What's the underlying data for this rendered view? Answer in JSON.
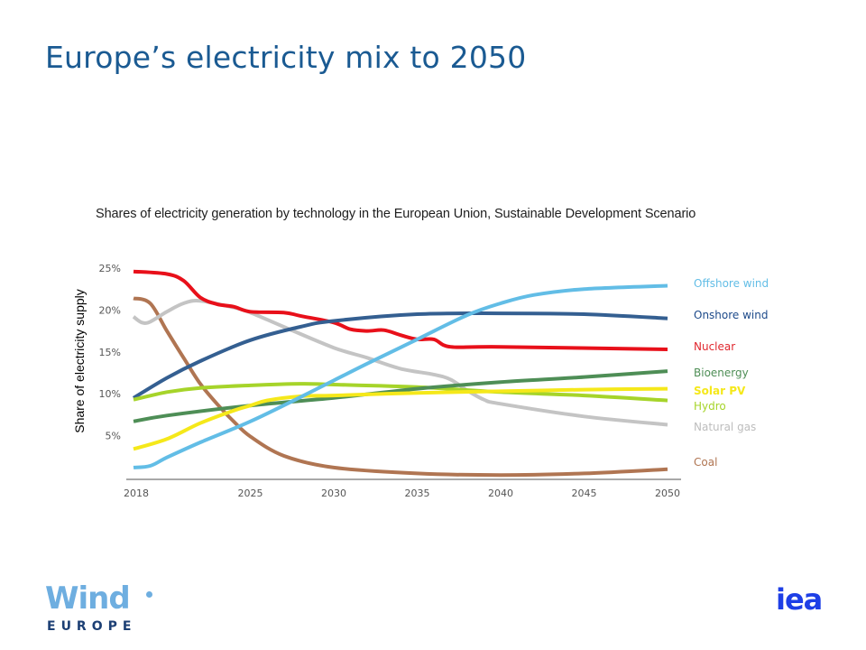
{
  "slide": {
    "title": "Europe’s electricity mix to 2050"
  },
  "logos": {
    "left_main": "Wind",
    "left_sub": "EUROPE",
    "right": "iea"
  },
  "chart_data": {
    "type": "line",
    "title": "Shares of electricity generation by technology in the European Union, Sustainable Development Scenario",
    "xlabel": "",
    "ylabel": "Share of electricity supply",
    "xlim": [
      2018,
      2050
    ],
    "ylim": [
      0,
      25
    ],
    "x_ticks": [
      2018,
      2025,
      2030,
      2035,
      2040,
      2045,
      2050
    ],
    "x_tick_labels": [
      "2018",
      "2025",
      "2030",
      "2035",
      "2040",
      "2045",
      "2050"
    ],
    "y_ticks": [
      5,
      10,
      15,
      20,
      25
    ],
    "y_tick_labels": [
      "5%",
      "10%",
      "15%",
      "20%",
      "25%"
    ],
    "grid": false,
    "legend_placement": "right (inline labels at line ends)",
    "series": [
      {
        "name": "Offshore wind",
        "color": "#62bde6",
        "points": [
          [
            2018,
            1.2
          ],
          [
            2019,
            1.4
          ],
          [
            2020,
            2.4
          ],
          [
            2022,
            4.2
          ],
          [
            2025,
            6.7
          ],
          [
            2028,
            9.6
          ],
          [
            2030,
            11.6
          ],
          [
            2032,
            13.6
          ],
          [
            2035,
            16.5
          ],
          [
            2038,
            19.4
          ],
          [
            2040,
            20.8
          ],
          [
            2042,
            21.8
          ],
          [
            2045,
            22.5
          ],
          [
            2050,
            22.9
          ]
        ]
      },
      {
        "name": "Onshore wind",
        "color": "#345f91",
        "points": [
          [
            2018,
            9.5
          ],
          [
            2020,
            11.9
          ],
          [
            2022,
            13.9
          ],
          [
            2025,
            16.4
          ],
          [
            2028,
            18.0
          ],
          [
            2030,
            18.7
          ],
          [
            2035,
            19.5
          ],
          [
            2040,
            19.6
          ],
          [
            2045,
            19.5
          ],
          [
            2050,
            19.0
          ]
        ]
      },
      {
        "name": "Nuclear",
        "color": "#e8101a",
        "points": [
          [
            2018,
            24.6
          ],
          [
            2020,
            24.3
          ],
          [
            2021,
            23.5
          ],
          [
            2022,
            21.5
          ],
          [
            2023,
            20.7
          ],
          [
            2024,
            20.4
          ],
          [
            2025,
            19.8
          ],
          [
            2027,
            19.7
          ],
          [
            2028,
            19.3
          ],
          [
            2030,
            18.5
          ],
          [
            2031,
            17.7
          ],
          [
            2032,
            17.5
          ],
          [
            2033,
            17.6
          ],
          [
            2034,
            17.0
          ],
          [
            2035,
            16.5
          ],
          [
            2036,
            16.5
          ],
          [
            2037,
            15.6
          ],
          [
            2040,
            15.6
          ],
          [
            2050,
            15.3
          ]
        ]
      },
      {
        "name": "Bioenergy",
        "color": "#4e8e56",
        "points": [
          [
            2018,
            6.7
          ],
          [
            2020,
            7.4
          ],
          [
            2025,
            8.6
          ],
          [
            2030,
            9.5
          ],
          [
            2035,
            10.6
          ],
          [
            2040,
            11.4
          ],
          [
            2045,
            12.0
          ],
          [
            2050,
            12.7
          ]
        ]
      },
      {
        "name": "Solar PV",
        "color": "#f5e81a",
        "points": [
          [
            2018,
            3.4
          ],
          [
            2020,
            4.6
          ],
          [
            2022,
            6.5
          ],
          [
            2024,
            8.0
          ],
          [
            2025,
            8.6
          ],
          [
            2026,
            9.2
          ],
          [
            2028,
            9.7
          ],
          [
            2030,
            9.8
          ],
          [
            2035,
            10.1
          ],
          [
            2040,
            10.3
          ],
          [
            2045,
            10.5
          ],
          [
            2050,
            10.6
          ]
        ]
      },
      {
        "name": "Hydro",
        "color": "#a6d42a",
        "points": [
          [
            2018,
            9.3
          ],
          [
            2020,
            10.2
          ],
          [
            2022,
            10.7
          ],
          [
            2025,
            11.0
          ],
          [
            2028,
            11.2
          ],
          [
            2030,
            11.1
          ],
          [
            2035,
            10.8
          ],
          [
            2040,
            10.2
          ],
          [
            2045,
            9.8
          ],
          [
            2050,
            9.2
          ]
        ]
      },
      {
        "name": "Natural gas",
        "color": "#c4c4c4",
        "points": [
          [
            2018,
            19.2
          ],
          [
            2018.5,
            18.5
          ],
          [
            2019,
            18.6
          ],
          [
            2020,
            19.8
          ],
          [
            2021,
            20.8
          ],
          [
            2022,
            21.1
          ],
          [
            2024,
            20.3
          ],
          [
            2025,
            19.7
          ],
          [
            2027,
            18.0
          ],
          [
            2030,
            15.5
          ],
          [
            2032,
            14.3
          ],
          [
            2034,
            13.0
          ],
          [
            2036,
            12.3
          ],
          [
            2037,
            11.7
          ],
          [
            2038,
            10.4
          ],
          [
            2039,
            9.3
          ],
          [
            2040,
            8.8
          ],
          [
            2045,
            7.3
          ],
          [
            2050,
            6.3
          ]
        ]
      },
      {
        "name": "Coal",
        "color": "#b07552",
        "points": [
          [
            2018,
            21.4
          ],
          [
            2019,
            20.8
          ],
          [
            2020,
            17.5
          ],
          [
            2021,
            14.3
          ],
          [
            2022,
            11.2
          ],
          [
            2023,
            8.8
          ],
          [
            2024,
            6.7
          ],
          [
            2025,
            4.9
          ],
          [
            2027,
            2.6
          ],
          [
            2030,
            1.2
          ],
          [
            2035,
            0.5
          ],
          [
            2040,
            0.3
          ],
          [
            2045,
            0.5
          ],
          [
            2050,
            1.0
          ]
        ]
      }
    ],
    "legend": [
      {
        "label": "Offshore wind",
        "color": "#62bde6"
      },
      {
        "label": "Onshore wind",
        "color": "#1d4a8a"
      },
      {
        "label": "Nuclear",
        "color": "#e0272e"
      },
      {
        "label": "Bioenergy",
        "color": "#4e8e56"
      },
      {
        "label": "Solar PV",
        "color": "#f5e81a"
      },
      {
        "label": "Hydro",
        "color": "#a6d42a"
      },
      {
        "label": "Natural gas",
        "color": "#bdbdbd"
      },
      {
        "label": "Coal",
        "color": "#b07552"
      }
    ]
  }
}
